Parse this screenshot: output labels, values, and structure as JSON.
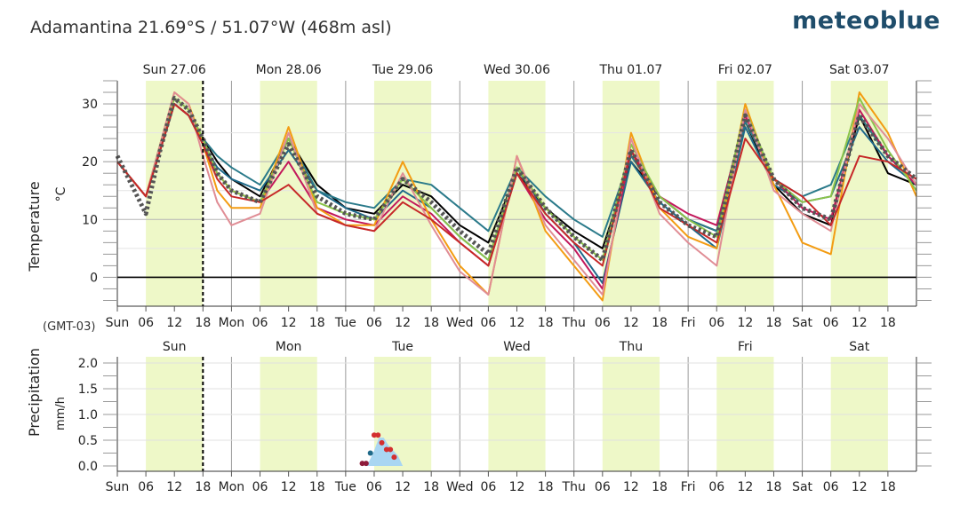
{
  "header": {
    "title": "Adamantina  21.69°S / 51.07°W (468m asl)",
    "brand": "meteoblue"
  },
  "timezone_label": "(GMT-03)",
  "colors": {
    "daylight": "#eef8c8",
    "grid": "#9a9a9a",
    "axis": "#333333",
    "mean": "#555555",
    "precip_fill": "#a9d6f2"
  },
  "chart_data": [
    {
      "type": "line",
      "title": "",
      "ylabel": "Temperature",
      "yunit": "°C",
      "ylim": [
        -5,
        34
      ],
      "yticks": [
        0,
        10,
        20,
        30
      ],
      "x_range_hours": [
        0,
        168
      ],
      "day_labels_top": [
        "Sun 27.06",
        "Mon 28.06",
        "Tue 29.06",
        "Wed 30.06",
        "Thu 01.07",
        "Fri 02.07",
        "Sat 03.07"
      ],
      "x_tick_labels": [
        "Sun",
        "06",
        "12",
        "18",
        "Mon",
        "06",
        "12",
        "18",
        "Tue",
        "06",
        "12",
        "18",
        "Wed",
        "06",
        "12",
        "18",
        "Thu",
        "06",
        "12",
        "18",
        "Fri",
        "06",
        "12",
        "18",
        "Sat",
        "06",
        "12",
        "18"
      ],
      "current_time_hour": 18,
      "grid": true,
      "series": [
        {
          "color": "#000000",
          "x": [
            0,
            6,
            9,
            12,
            15,
            18,
            21,
            24,
            30,
            36,
            42,
            48,
            54,
            60,
            66,
            72,
            78,
            84,
            90,
            96,
            102,
            108,
            114,
            120,
            126,
            132,
            138,
            144,
            150,
            156,
            162,
            168
          ],
          "values": [
            20,
            14,
            22,
            30,
            28,
            24,
            20,
            17,
            14,
            24,
            16,
            12,
            11,
            16,
            14,
            9,
            6,
            18,
            12,
            8,
            5,
            20,
            14,
            10,
            8,
            27,
            16,
            11,
            9,
            28,
            18,
            16
          ]
        },
        {
          "color": "#1f6a8a",
          "x": [
            0,
            6,
            9,
            12,
            15,
            18,
            21,
            24,
            30,
            36,
            42,
            48,
            54,
            60,
            66,
            72,
            78,
            84,
            90,
            96,
            102,
            108,
            114,
            120,
            126,
            132,
            138,
            144,
            150,
            156,
            162,
            168
          ],
          "values": [
            20,
            14,
            22,
            30,
            28,
            23,
            19,
            17,
            15,
            22,
            15,
            12,
            10,
            15,
            12,
            7,
            3,
            19,
            11,
            6,
            -1,
            20,
            13,
            9,
            5,
            26,
            16,
            13,
            14,
            26,
            20,
            16
          ]
        },
        {
          "color": "#2a7a8a",
          "x": [
            0,
            6,
            9,
            12,
            15,
            18,
            21,
            24,
            30,
            36,
            42,
            48,
            54,
            60,
            66,
            72,
            78,
            84,
            90,
            96,
            102,
            108,
            114,
            120,
            126,
            132,
            138,
            144,
            150,
            156,
            162,
            168
          ],
          "values": [
            20,
            14,
            22,
            30,
            28,
            24,
            21,
            19,
            16,
            24,
            15,
            13,
            12,
            17,
            16,
            12,
            8,
            19,
            14,
            10,
            7,
            21,
            14,
            10,
            8,
            27,
            17,
            14,
            16,
            28,
            21,
            16
          ]
        },
        {
          "color": "#c2185b",
          "x": [
            0,
            6,
            9,
            12,
            15,
            18,
            21,
            24,
            30,
            36,
            42,
            48,
            54,
            60,
            66,
            72,
            78,
            84,
            90,
            96,
            102,
            108,
            114,
            120,
            126,
            132,
            138,
            144,
            150,
            156,
            162,
            168
          ],
          "values": [
            20,
            14,
            22,
            30,
            28,
            23,
            18,
            15,
            13,
            20,
            12,
            10,
            9,
            14,
            11,
            6,
            2,
            18,
            10,
            5,
            -2,
            22,
            14,
            11,
            9,
            28,
            17,
            12,
            10,
            29,
            21,
            16
          ]
        },
        {
          "color": "#f39c12",
          "x": [
            0,
            6,
            9,
            12,
            15,
            18,
            21,
            24,
            30,
            36,
            42,
            48,
            54,
            60,
            66,
            72,
            78,
            84,
            90,
            96,
            102,
            108,
            114,
            120,
            126,
            132,
            138,
            144,
            150,
            156,
            162,
            168
          ],
          "values": [
            20,
            14,
            23,
            32,
            30,
            23,
            15,
            12,
            12,
            26,
            12,
            9,
            9,
            20,
            10,
            2,
            -3,
            21,
            8,
            2,
            -4,
            25,
            12,
            7,
            5,
            30,
            16,
            6,
            4,
            32,
            25,
            14
          ]
        },
        {
          "color": "#8bc34a",
          "x": [
            0,
            6,
            9,
            12,
            15,
            18,
            21,
            24,
            30,
            36,
            42,
            48,
            54,
            60,
            66,
            72,
            78,
            84,
            90,
            96,
            102,
            108,
            114,
            120,
            126,
            132,
            138,
            144,
            150,
            156,
            162,
            168
          ],
          "values": [
            20,
            14,
            23,
            31,
            29,
            24,
            18,
            15,
            13,
            24,
            13,
            11,
            10,
            17,
            12,
            7,
            3,
            19,
            12,
            7,
            3,
            23,
            14,
            10,
            7,
            29,
            17,
            13,
            14,
            31,
            22,
            15
          ]
        },
        {
          "color": "#e08d95",
          "x": [
            0,
            6,
            9,
            12,
            15,
            18,
            21,
            24,
            30,
            36,
            42,
            48,
            54,
            60,
            66,
            72,
            78,
            84,
            90,
            96,
            102,
            108,
            114,
            120,
            126,
            132,
            138,
            144,
            150,
            156,
            162,
            168
          ],
          "values": [
            20,
            14,
            23,
            32,
            30,
            21,
            13,
            9,
            11,
            25,
            11,
            9,
            8,
            18,
            9,
            1,
            -3,
            21,
            9,
            3,
            -3,
            24,
            11,
            6,
            2,
            29,
            15,
            11,
            8,
            30,
            24,
            16
          ]
        },
        {
          "color": "#c62828",
          "x": [
            0,
            6,
            9,
            12,
            15,
            18,
            21,
            24,
            30,
            36,
            42,
            48,
            54,
            60,
            66,
            72,
            78,
            84,
            90,
            96,
            102,
            108,
            114,
            120,
            126,
            132,
            138,
            144,
            150,
            156,
            162,
            168
          ],
          "values": [
            20,
            14,
            22,
            30,
            28,
            23,
            17,
            14,
            13,
            16,
            11,
            9,
            8,
            13,
            10,
            6,
            2,
            18,
            11,
            6,
            2,
            22,
            12,
            9,
            6,
            24,
            17,
            14,
            9,
            21,
            20,
            17
          ]
        },
        {
          "color": "#555555",
          "dashed": true,
          "x": [
            0,
            6,
            9,
            12,
            15,
            18,
            21,
            24,
            30,
            36,
            42,
            48,
            54,
            60,
            66,
            72,
            78,
            84,
            90,
            96,
            102,
            108,
            114,
            120,
            126,
            132,
            138,
            144,
            150,
            156,
            162,
            168
          ],
          "values": [
            21,
            11,
            22,
            31,
            29,
            24,
            18,
            15,
            13,
            23,
            14,
            11,
            10,
            17,
            13,
            8,
            4,
            19,
            12,
            7,
            3,
            22,
            13,
            9,
            7,
            28,
            17,
            12,
            10,
            28,
            21,
            17
          ]
        }
      ]
    },
    {
      "type": "scatter",
      "title": "",
      "ylabel": "Precipitation",
      "yunit": "mm/h",
      "ylim": [
        0,
        2
      ],
      "ytick_labels": [
        "0.0",
        "0.5",
        "1.0",
        "1.5",
        "2.0"
      ],
      "day_labels_top": [
        "Sun",
        "Mon",
        "Tue",
        "Wed",
        "Thu",
        "Fri",
        "Sat"
      ],
      "x_tick_labels": [
        "Sun",
        "06",
        "12",
        "18",
        "Mon",
        "06",
        "12",
        "18",
        "Tue",
        "06",
        "12",
        "18",
        "Wed",
        "06",
        "12",
        "18",
        "Thu",
        "06",
        "12",
        "18",
        "Fri",
        "06",
        "12",
        "18",
        "Sat",
        "06",
        "12",
        "18"
      ],
      "current_time_hour": 18,
      "area": {
        "x": [
          52,
          53,
          54,
          55,
          56,
          57,
          58,
          59,
          60
        ],
        "values": [
          0,
          0.1,
          0.3,
          0.55,
          0.55,
          0.4,
          0.3,
          0.2,
          0
        ]
      },
      "points": [
        {
          "x": 51.5,
          "y": 0.05,
          "color": "#8e1b3a"
        },
        {
          "x": 52.3,
          "y": 0.05,
          "color": "#8e1b3a"
        },
        {
          "x": 53.2,
          "y": 0.25,
          "color": "#1f6a8a"
        },
        {
          "x": 54.0,
          "y": 0.6,
          "color": "#d32f2f"
        },
        {
          "x": 54.8,
          "y": 0.6,
          "color": "#d32f2f"
        },
        {
          "x": 55.6,
          "y": 0.45,
          "color": "#d32f2f"
        },
        {
          "x": 56.6,
          "y": 0.32,
          "color": "#d32f2f"
        },
        {
          "x": 57.4,
          "y": 0.32,
          "color": "#d32f2f"
        },
        {
          "x": 58.2,
          "y": 0.17,
          "color": "#d32f2f"
        }
      ]
    }
  ]
}
